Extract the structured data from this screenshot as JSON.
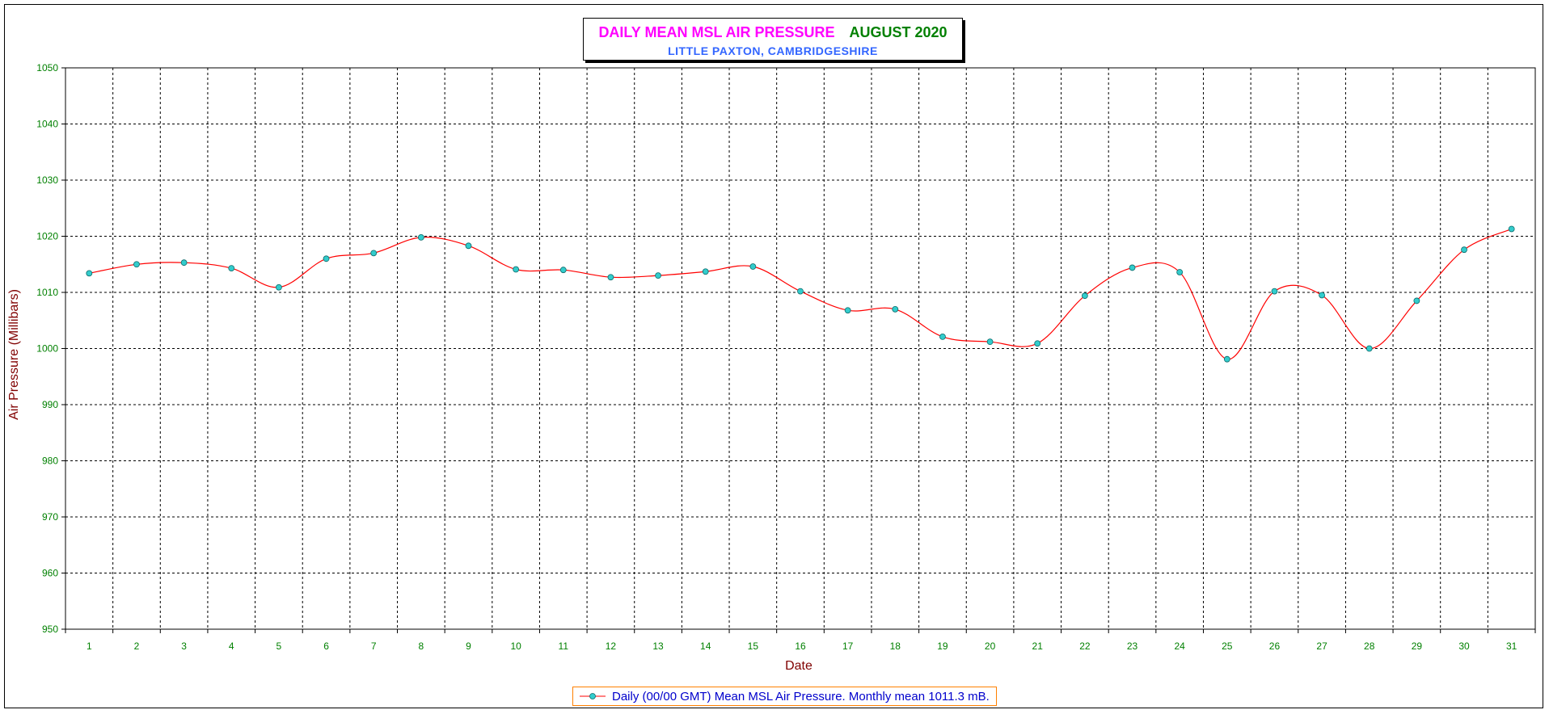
{
  "title": {
    "main": "DAILY MEAN MSL AIR PRESSURE",
    "month": "AUGUST 2020",
    "subtitle": "LITTLE PAXTON, CAMBRIDGESHIRE"
  },
  "legend": {
    "text": "Daily (00/00 GMT) Mean MSL Air Pressure. Monthly mean 1011.3 mB."
  },
  "colors": {
    "line": "#ff0000",
    "marker_fill": "#33cccc",
    "grid": "#000000",
    "tick_text": "#008000",
    "axis_label": "#800000",
    "legend_border": "#ff8000",
    "legend_text": "#0000cc"
  },
  "chart_data": {
    "type": "line",
    "title": "DAILY MEAN MSL AIR PRESSURE AUGUST 2020",
    "subtitle": "LITTLE PAXTON, CAMBRIDGESHIRE",
    "xlabel": "Date",
    "ylabel": "Air Pressure (Millibars)",
    "ylim": [
      950,
      1050
    ],
    "yticks": [
      950,
      960,
      970,
      980,
      990,
      1000,
      1010,
      1020,
      1030,
      1040,
      1050
    ],
    "grid": true,
    "legend_position": "bottom-center",
    "x": [
      1,
      2,
      3,
      4,
      5,
      6,
      7,
      8,
      9,
      10,
      11,
      12,
      13,
      14,
      15,
      16,
      17,
      18,
      19,
      20,
      21,
      22,
      23,
      24,
      25,
      26,
      27,
      28,
      29,
      30,
      31
    ],
    "series": [
      {
        "name": "Daily (00/00 GMT) Mean MSL Air Pressure. Monthly mean 1011.3 mB.",
        "values": [
          1013.4,
          1015.0,
          1015.3,
          1014.3,
          1010.9,
          1016.0,
          1017.0,
          1019.8,
          1018.3,
          1014.1,
          1014.0,
          1012.7,
          1013.0,
          1013.7,
          1014.6,
          1010.2,
          1006.8,
          1007.0,
          1002.1,
          1001.2,
          1000.9,
          1009.4,
          1014.4,
          1013.6,
          998.1,
          1010.2,
          1009.5,
          1000.0,
          1008.5,
          1017.6,
          1021.3
        ]
      }
    ]
  }
}
